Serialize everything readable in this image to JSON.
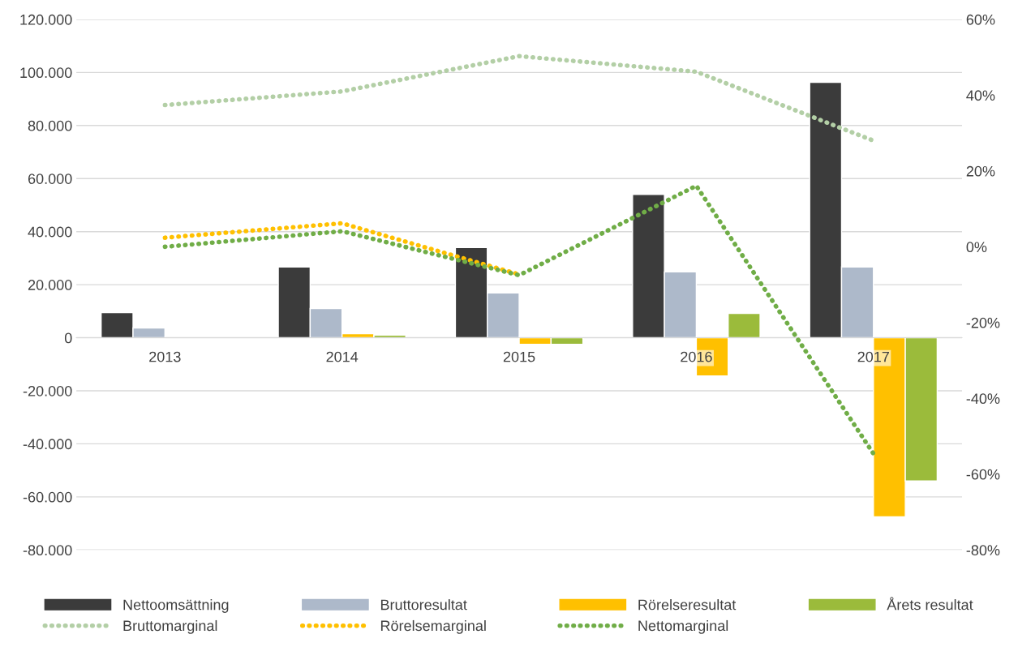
{
  "chart_data": {
    "type": "bar",
    "categories": [
      "2013",
      "2014",
      "2015",
      "2016",
      "2017"
    ],
    "series": [
      {
        "name": "Nettoomsättning",
        "color": "#3b3b3b",
        "values": [
          9500,
          26700,
          34000,
          54000,
          96300
        ]
      },
      {
        "name": "Bruttoresultat",
        "color": "#adb9ca",
        "values": [
          3700,
          11000,
          16900,
          24800,
          26700
        ]
      },
      {
        "name": "Rörelseresultat",
        "color": "#ffc000",
        "values": [
          null,
          1500,
          -2500,
          -14400,
          -67500
        ]
      },
      {
        "name": "Årets resultat",
        "color": "#9bbb3b",
        "values": [
          null,
          1000,
          -2500,
          9200,
          -54000
        ]
      },
      {
        "name": "Bruttomarginal",
        "type": "line",
        "axis": "y2",
        "line_style": "dotted",
        "color": "#b3cfa6",
        "values": [
          37.4,
          41,
          50.3,
          46.2,
          28
        ]
      },
      {
        "name": "Rörelsemarginal",
        "type": "line",
        "axis": "y2",
        "line_style": "dotted",
        "color": "#ffc000",
        "values": [
          2.4,
          6.2,
          -7.3,
          null,
          null
        ]
      },
      {
        "name": "Nettomarginal",
        "type": "line",
        "axis": "y2",
        "line_style": "dotted",
        "color": "#70ad47",
        "values": [
          0,
          4.1,
          -7.5,
          16.1,
          -54.6
        ]
      }
    ],
    "ylim": [
      -80000,
      120000
    ],
    "yticks": [
      {
        "value": -80000,
        "label": "-80.000"
      },
      {
        "value": -60000,
        "label": "-60.000"
      },
      {
        "value": -40000,
        "label": "-40.000"
      },
      {
        "value": -20000,
        "label": "-20.000"
      },
      0,
      {
        "value": 20000,
        "label": "20.000"
      },
      {
        "value": 40000,
        "label": "40.000"
      },
      {
        "value": 60000,
        "label": "60.000"
      },
      {
        "value": 80000,
        "label": "80.000"
      },
      {
        "value": 100000,
        "label": "100.000"
      },
      {
        "value": 120000,
        "label": "120.000"
      }
    ],
    "y2lim": [
      -80,
      60
    ],
    "y2ticks": [
      {
        "value": -80,
        "label": "-80%"
      },
      {
        "value": -60,
        "label": "-60%"
      },
      {
        "value": -40,
        "label": "-40%"
      },
      {
        "value": -20,
        "label": "-20%"
      },
      {
        "value": 0,
        "label": "0%"
      },
      {
        "value": 20,
        "label": "20%"
      },
      {
        "value": 40,
        "label": "40%"
      },
      {
        "value": 60,
        "label": "60%"
      }
    ],
    "grid": "y",
    "legend": "bottom",
    "marker": "none"
  }
}
